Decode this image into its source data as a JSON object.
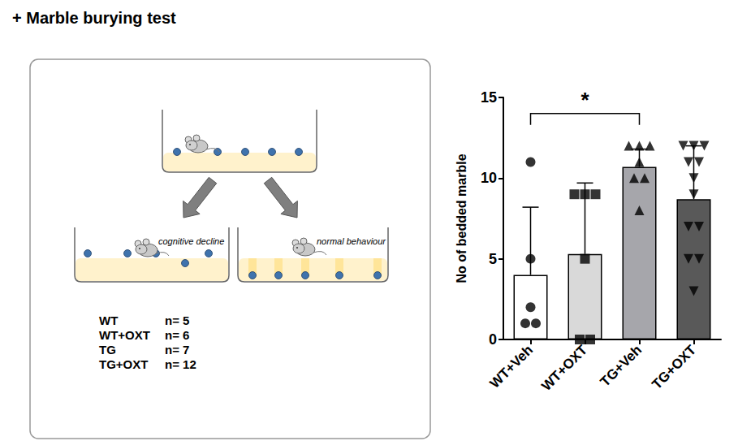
{
  "header": {
    "title": "+ Marble burying test"
  },
  "diagram": {
    "outcomes": [
      {
        "label": "cognitive decline"
      },
      {
        "label": "normal behaviour"
      }
    ],
    "groups": [
      {
        "group": "WT",
        "n": "n= 5"
      },
      {
        "group": "WT+OXT",
        "n": "n= 6"
      },
      {
        "group": "TG",
        "n": "n= 7"
      },
      {
        "group": "TG+OXT",
        "n": "n= 12"
      }
    ]
  },
  "chart_data": {
    "type": "bar",
    "y_label": "No of bedded marble",
    "categories": [
      "WT+Veh",
      "WT+OXT",
      "TG+Veh",
      "TG+OXT"
    ],
    "values": [
      4.0,
      5.3,
      10.7,
      8.7
    ],
    "errors": [
      4.2,
      4.4,
      1.1,
      3.3
    ],
    "colors": [
      "#ffffff",
      "#d9d9d9",
      "#a6a6ab",
      "#595959"
    ],
    "points": [
      [
        11,
        5,
        2,
        1,
        1
      ],
      [
        9,
        9,
        9,
        5,
        0,
        0
      ],
      [
        12,
        12,
        12,
        11,
        10,
        10,
        8
      ],
      [
        12,
        12,
        12,
        11,
        11,
        10,
        9,
        7,
        7,
        5,
        5,
        3
      ]
    ],
    "markers": [
      "circle",
      "square",
      "triangle",
      "triangle-down"
    ],
    "ylim": [
      0,
      15
    ],
    "yticks": [
      0,
      5,
      10,
      15
    ],
    "grid": false,
    "annotations": [
      {
        "from": "WT+Veh",
        "to": "TG+Veh",
        "y": 14,
        "text": "*"
      }
    ]
  }
}
